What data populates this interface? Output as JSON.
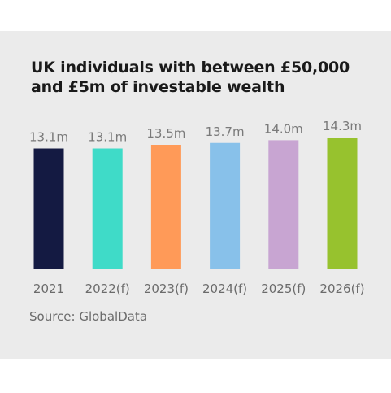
{
  "chart_data": {
    "type": "bar",
    "title": "UK individuals with between £50,000 and £5m of investable wealth",
    "categories": [
      "2021",
      "2022(f)",
      "2023(f)",
      "2024(f)",
      "2025(f)",
      "2026(f)"
    ],
    "values": [
      13.1,
      13.1,
      13.5,
      13.7,
      14.0,
      14.3
    ],
    "data_labels": [
      "13.1m",
      "13.1m",
      "13.5m",
      "13.7m",
      "14.0m",
      "14.3m"
    ],
    "colors": [
      "#141a42",
      "#3fdbc8",
      "#ff9a58",
      "#88c1ea",
      "#c8a5d2",
      "#97c22e"
    ],
    "xlabel": "",
    "ylabel": "",
    "legend": "none",
    "grid": false,
    "source": "Source: GlobalData"
  }
}
